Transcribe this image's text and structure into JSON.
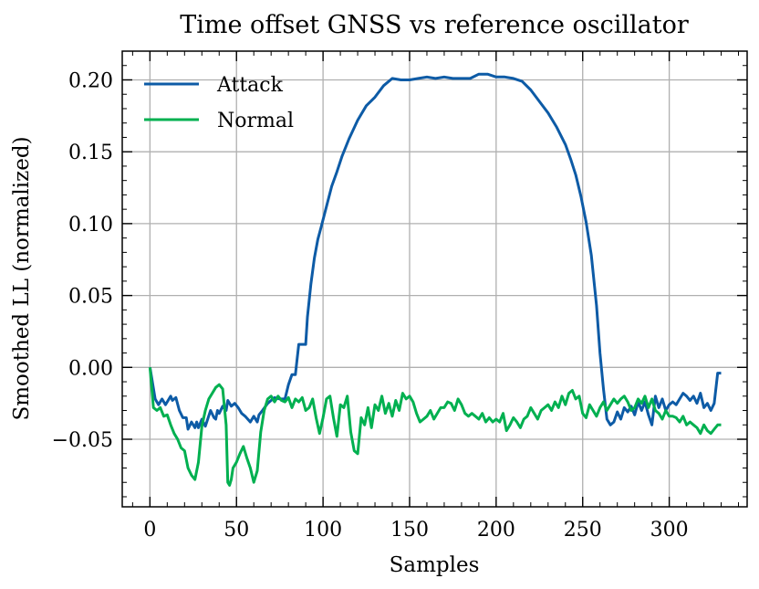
{
  "chart_data": {
    "type": "line",
    "title": "Time offset GNSS vs reference oscillator",
    "xlabel": "Samples",
    "ylabel": "Smoothed LL (normalized)",
    "xlim": [
      -16,
      345
    ],
    "ylim": [
      -0.097,
      0.22
    ],
    "xticks": [
      0,
      50,
      100,
      150,
      200,
      250,
      300
    ],
    "xtick_labels": [
      "0",
      "50",
      "100",
      "150",
      "200",
      "250",
      "300"
    ],
    "yticks": [
      -0.05,
      0.0,
      0.05,
      0.1,
      0.15,
      0.2
    ],
    "ytick_labels": [
      "−0.05",
      "0.00",
      "0.05",
      "0.10",
      "0.15",
      "0.20"
    ],
    "grid": true,
    "legend_position": "top-left",
    "series": [
      {
        "name": "Attack",
        "color": "#0d5ba6",
        "x": [
          0,
          3,
          5,
          7,
          9,
          10,
          12,
          13,
          15,
          17,
          19,
          21,
          22,
          24,
          26,
          27,
          28,
          30,
          32,
          35,
          37,
          38,
          39,
          40,
          42,
          44,
          45,
          47,
          49,
          51,
          53,
          55,
          58,
          60,
          62,
          63,
          65,
          68,
          70,
          72,
          75,
          78,
          80,
          82,
          84,
          86,
          88,
          89,
          90,
          91,
          93,
          95,
          97,
          99,
          102,
          105,
          108,
          111,
          115,
          120,
          125,
          130,
          135,
          140,
          145,
          150,
          155,
          160,
          165,
          170,
          175,
          180,
          185,
          190,
          195,
          200,
          205,
          210,
          215,
          220,
          225,
          230,
          235,
          240,
          243,
          246,
          249,
          252,
          255,
          258,
          260,
          262,
          264,
          266,
          268,
          270,
          272,
          274,
          276,
          278,
          280,
          282,
          284,
          286,
          288,
          290,
          292,
          294,
          296,
          298,
          300,
          302,
          304,
          306,
          308,
          310,
          312,
          314,
          316,
          318,
          320,
          322,
          324,
          326,
          328,
          330
        ],
        "y": [
          0.0,
          -0.022,
          -0.026,
          -0.022,
          -0.026,
          -0.024,
          -0.02,
          -0.023,
          -0.021,
          -0.03,
          -0.035,
          -0.035,
          -0.043,
          -0.038,
          -0.042,
          -0.038,
          -0.042,
          -0.036,
          -0.041,
          -0.03,
          -0.035,
          -0.036,
          -0.03,
          -0.032,
          -0.027,
          -0.03,
          -0.023,
          -0.027,
          -0.025,
          -0.028,
          -0.032,
          -0.034,
          -0.038,
          -0.034,
          -0.038,
          -0.033,
          -0.03,
          -0.025,
          -0.023,
          -0.021,
          -0.022,
          -0.022,
          -0.012,
          -0.005,
          -0.005,
          0.016,
          0.016,
          0.016,
          0.016,
          0.035,
          0.058,
          0.076,
          0.089,
          0.098,
          0.112,
          0.126,
          0.136,
          0.147,
          0.159,
          0.172,
          0.182,
          0.188,
          0.196,
          0.201,
          0.2,
          0.2,
          0.201,
          0.202,
          0.201,
          0.202,
          0.201,
          0.201,
          0.201,
          0.204,
          0.204,
          0.202,
          0.202,
          0.201,
          0.199,
          0.193,
          0.185,
          0.177,
          0.167,
          0.155,
          0.145,
          0.134,
          0.119,
          0.101,
          0.078,
          0.043,
          0.01,
          -0.015,
          -0.036,
          -0.04,
          -0.038,
          -0.031,
          -0.036,
          -0.028,
          -0.031,
          -0.027,
          -0.033,
          -0.024,
          -0.03,
          -0.024,
          -0.033,
          -0.04,
          -0.02,
          -0.028,
          -0.022,
          -0.03,
          -0.026,
          -0.024,
          -0.026,
          -0.022,
          -0.018,
          -0.02,
          -0.023,
          -0.02,
          -0.025,
          -0.018,
          -0.028,
          -0.025,
          -0.03,
          -0.025,
          -0.004,
          -0.004
        ]
      },
      {
        "name": "Normal",
        "color": "#00b050",
        "x": [
          0,
          2,
          4,
          6,
          8,
          10,
          12,
          14,
          16,
          18,
          20,
          22,
          24,
          26,
          28,
          30,
          32,
          34,
          36,
          38,
          40,
          42,
          44,
          45,
          46,
          47,
          48,
          50,
          52,
          54,
          56,
          58,
          60,
          62,
          64,
          66,
          68,
          70,
          72,
          74,
          76,
          78,
          80,
          82,
          84,
          86,
          88,
          90,
          92,
          94,
          96,
          98,
          100,
          102,
          104,
          106,
          108,
          110,
          112,
          114,
          116,
          118,
          120,
          122,
          124,
          126,
          128,
          130,
          132,
          134,
          136,
          138,
          140,
          142,
          144,
          146,
          148,
          150,
          152,
          154,
          156,
          158,
          160,
          162,
          164,
          166,
          168,
          170,
          172,
          174,
          176,
          178,
          180,
          182,
          184,
          186,
          188,
          190,
          192,
          194,
          196,
          198,
          200,
          202,
          204,
          206,
          208,
          210,
          212,
          214,
          216,
          218,
          220,
          222,
          224,
          226,
          228,
          230,
          232,
          234,
          236,
          238,
          240,
          242,
          244,
          246,
          248,
          250,
          252,
          254,
          256,
          258,
          260,
          262,
          264,
          266,
          268,
          270,
          272,
          274,
          276,
          278,
          280,
          282,
          284,
          286,
          288,
          290,
          292,
          294,
          296,
          298,
          300,
          302,
          304,
          306,
          308,
          310,
          312,
          314,
          316,
          318,
          320,
          322,
          324,
          326,
          328,
          330
        ],
        "y": [
          0.0,
          -0.028,
          -0.03,
          -0.028,
          -0.034,
          -0.033,
          -0.04,
          -0.046,
          -0.05,
          -0.056,
          -0.058,
          -0.07,
          -0.075,
          -0.078,
          -0.066,
          -0.041,
          -0.03,
          -0.022,
          -0.018,
          -0.014,
          -0.012,
          -0.015,
          -0.04,
          -0.08,
          -0.082,
          -0.078,
          -0.07,
          -0.066,
          -0.06,
          -0.055,
          -0.063,
          -0.07,
          -0.08,
          -0.072,
          -0.045,
          -0.03,
          -0.022,
          -0.02,
          -0.024,
          -0.02,
          -0.023,
          -0.024,
          -0.021,
          -0.028,
          -0.022,
          -0.024,
          -0.021,
          -0.03,
          -0.028,
          -0.022,
          -0.035,
          -0.046,
          -0.035,
          -0.022,
          -0.02,
          -0.035,
          -0.048,
          -0.026,
          -0.028,
          -0.02,
          -0.045,
          -0.058,
          -0.06,
          -0.035,
          -0.04,
          -0.028,
          -0.042,
          -0.026,
          -0.03,
          -0.02,
          -0.032,
          -0.025,
          -0.034,
          -0.023,
          -0.03,
          -0.018,
          -0.022,
          -0.02,
          -0.024,
          -0.032,
          -0.038,
          -0.036,
          -0.034,
          -0.03,
          -0.036,
          -0.032,
          -0.028,
          -0.028,
          -0.024,
          -0.025,
          -0.03,
          -0.022,
          -0.026,
          -0.032,
          -0.034,
          -0.032,
          -0.034,
          -0.036,
          -0.032,
          -0.038,
          -0.035,
          -0.038,
          -0.036,
          -0.038,
          -0.032,
          -0.044,
          -0.04,
          -0.035,
          -0.038,
          -0.042,
          -0.036,
          -0.034,
          -0.028,
          -0.032,
          -0.036,
          -0.03,
          -0.028,
          -0.026,
          -0.03,
          -0.024,
          -0.028,
          -0.02,
          -0.026,
          -0.018,
          -0.016,
          -0.022,
          -0.02,
          -0.032,
          -0.035,
          -0.026,
          -0.03,
          -0.034,
          -0.028,
          -0.024,
          -0.03,
          -0.026,
          -0.022,
          -0.025,
          -0.022,
          -0.02,
          -0.024,
          -0.03,
          -0.028,
          -0.022,
          -0.025,
          -0.02,
          -0.028,
          -0.022,
          -0.03,
          -0.032,
          -0.036,
          -0.03,
          -0.034,
          -0.034,
          -0.035,
          -0.038,
          -0.034,
          -0.04,
          -0.038,
          -0.04,
          -0.042,
          -0.046,
          -0.04,
          -0.044,
          -0.046,
          -0.043,
          -0.04,
          -0.04
        ]
      }
    ]
  }
}
